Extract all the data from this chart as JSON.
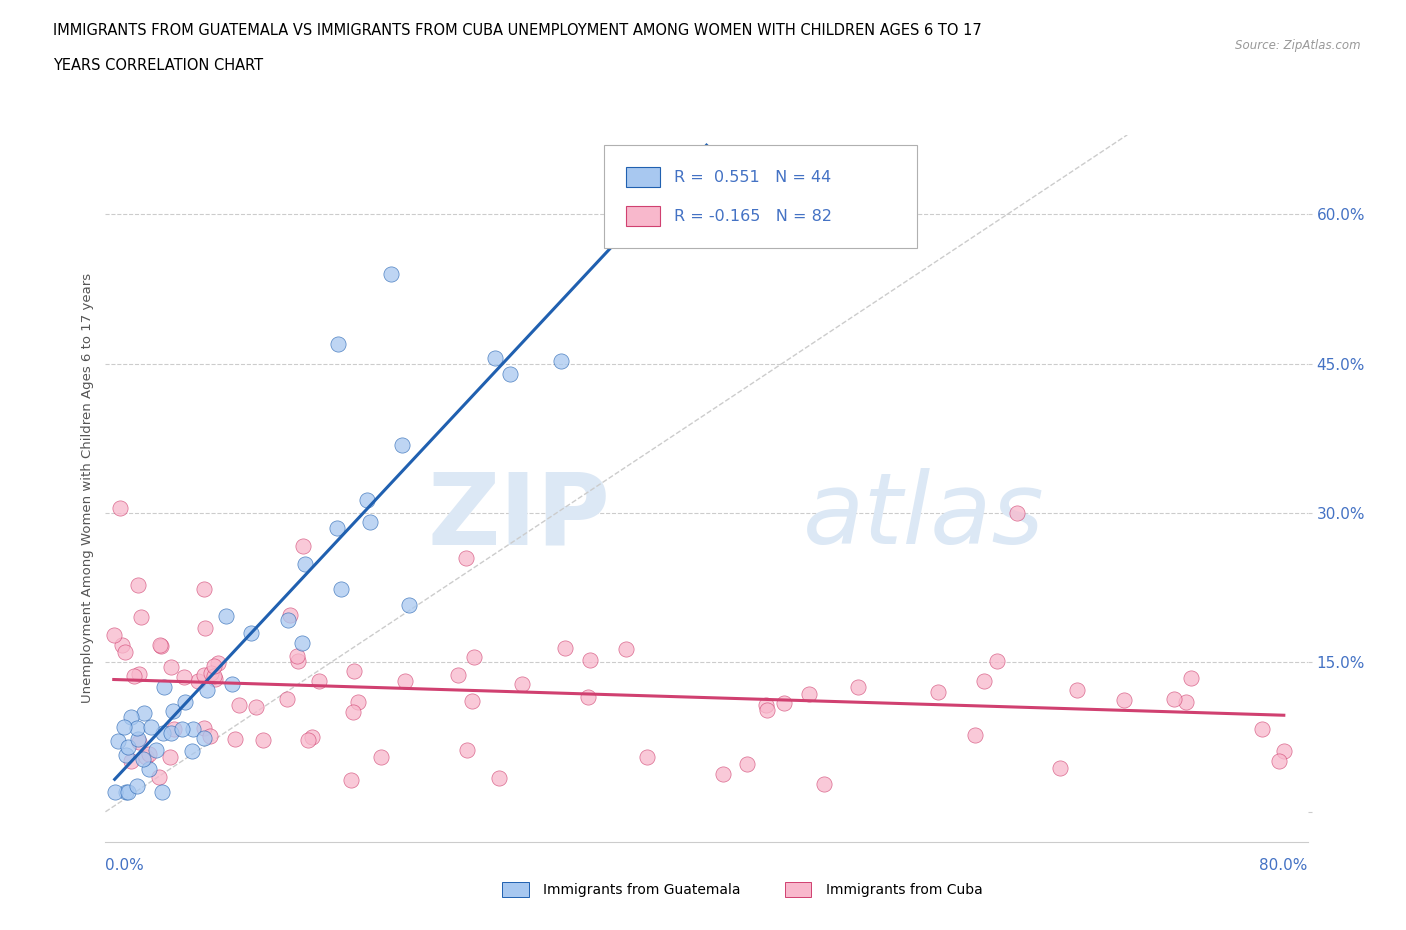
{
  "title_line1": "IMMIGRANTS FROM GUATEMALA VS IMMIGRANTS FROM CUBA UNEMPLOYMENT AMONG WOMEN WITH CHILDREN AGES 6 TO 17",
  "title_line2": "YEARS CORRELATION CHART",
  "source_text": "Source: ZipAtlas.com",
  "ylabel": "Unemployment Among Women with Children Ages 6 to 17 years",
  "yticks": [
    0.0,
    0.15,
    0.3,
    0.45,
    0.6
  ],
  "ytick_labels": [
    "",
    "15.0%",
    "30.0%",
    "45.0%",
    "60.0%"
  ],
  "xlim": [
    0.0,
    0.8
  ],
  "ylim": [
    -0.03,
    0.68
  ],
  "r_guatemala": "0.551",
  "n_guatemala": "44",
  "r_cuba": "-0.165",
  "n_cuba": "82",
  "color_guatemala": "#a8c8f0",
  "color_cuba": "#f8b8cc",
  "trendline_guatemala": "#2060b0",
  "trendline_cuba": "#d04070",
  "watermark_zip": "ZIP",
  "watermark_atlas": "atlas",
  "watermark_color": "#dce8f5",
  "diag_color": "#cccccc",
  "grid_color": "#cccccc",
  "legend_r_color": "#4472c4",
  "legend_n_color": "#4472c4",
  "legend_border_color": "#b0b0b0",
  "axis_label_color": "#4472c4",
  "bottom_spine_color": "#cccccc"
}
